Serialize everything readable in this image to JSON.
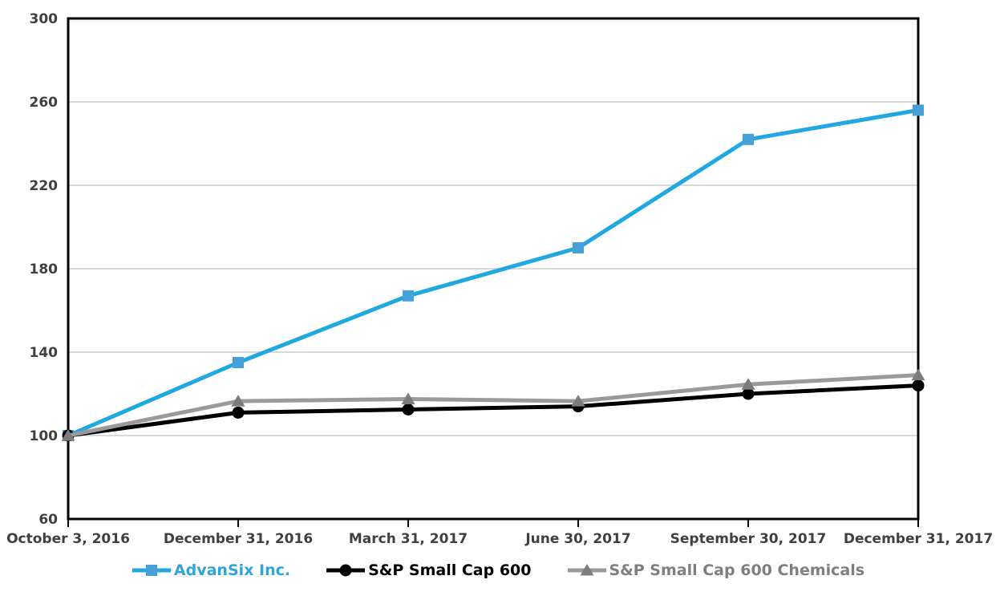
{
  "chart_data": {
    "type": "line",
    "title": "",
    "xlabel": "",
    "ylabel": "",
    "categories": [
      "October 3, 2016",
      "December 31, 2016",
      "March 31, 2017",
      "June 30, 2017",
      "September 30, 2017",
      "December 31, 2017"
    ],
    "series": [
      {
        "name": "AdvanSix Inc.",
        "values": [
          100,
          135,
          167,
          190,
          242,
          256
        ],
        "color": "#1FA8E2",
        "marker": "square",
        "marker_color": "#46A1D8",
        "label_color": "#2FA3DC"
      },
      {
        "name": "S&P Small Cap 600",
        "values": [
          100,
          111,
          112.5,
          114,
          120,
          124
        ],
        "color": "#000000",
        "marker": "circle",
        "marker_color": "#000000",
        "label_color": "#000000"
      },
      {
        "name": "S&P Small Cap 600 Chemicals",
        "values": [
          100,
          116.5,
          117.5,
          116.5,
          124.5,
          129
        ],
        "color": "#9A9A9A",
        "marker": "triangle",
        "marker_color": "#7C7C7C",
        "label_color": "#7F7F7F"
      }
    ],
    "ylim": [
      60,
      300
    ],
    "yticks": [
      60,
      100,
      140,
      180,
      220,
      260,
      300
    ],
    "grid": true,
    "legend_position": "bottom"
  },
  "colors": {
    "background": "#FFFFFF",
    "axis": "#000000",
    "gridline": "#D9D9D9",
    "tick_label": "#404040"
  }
}
